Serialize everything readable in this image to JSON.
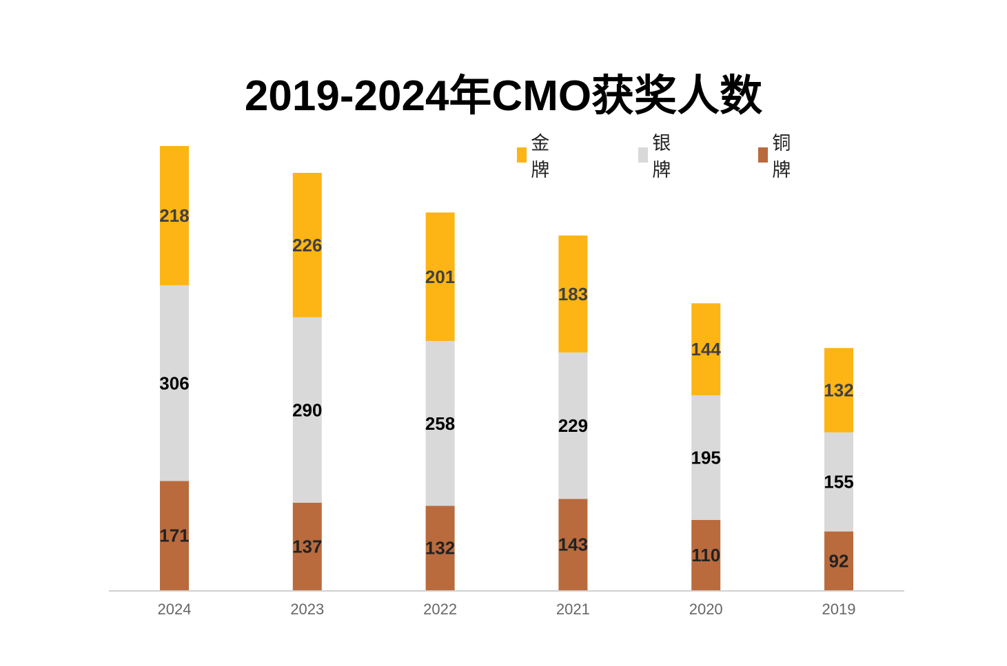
{
  "chart_data": {
    "type": "bar",
    "stacked": true,
    "title": "2019-2024年CMO获奖人数",
    "xlabel": "",
    "ylabel": "",
    "categories": [
      "2024",
      "2023",
      "2022",
      "2021",
      "2020",
      "2019"
    ],
    "series": [
      {
        "name": "铜牌",
        "color": "#B96B3E",
        "label_color": "#222222",
        "values": [
          171,
          137,
          132,
          143,
          110,
          92
        ]
      },
      {
        "name": "银牌",
        "color": "#D9D9D9",
        "label_color": "#000000",
        "values": [
          306,
          290,
          258,
          229,
          195,
          155
        ]
      },
      {
        "name": "金牌",
        "color": "#FDB515",
        "label_color": "#404040",
        "values": [
          218,
          226,
          201,
          183,
          144,
          132
        ]
      }
    ],
    "legend": {
      "position": "top-right",
      "order": [
        "金牌",
        "银牌",
        "铜牌"
      ]
    },
    "ylim": [
      0,
      695
    ],
    "grid": false,
    "y_axis_visible": false,
    "data_labels": true
  }
}
